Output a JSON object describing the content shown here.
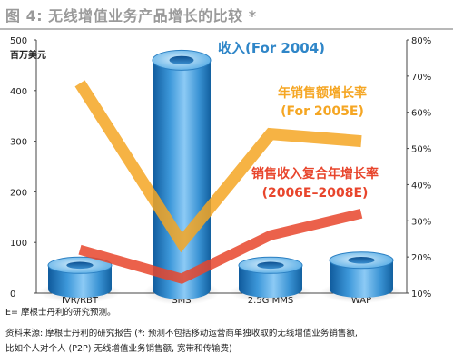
{
  "title": "图 4: 无线增值业务产品增长的比较 *",
  "chart_data": {
    "type": "bar",
    "categories": [
      "IVR/RBT",
      "SMS",
      "2.5G MMS",
      "WAP"
    ],
    "left_axis": {
      "unit": "百万美元",
      "min": 0,
      "max": 500,
      "ticks": [
        "0",
        "100",
        "200",
        "300",
        "400",
        "500"
      ]
    },
    "right_axis": {
      "min": 10,
      "max": 80,
      "ticks": [
        "10%",
        "20%",
        "30%",
        "40%",
        "50%",
        "60%",
        "70%",
        "80%"
      ]
    },
    "series": [
      {
        "name": "收入(For 2004)",
        "kind": "bar",
        "axis": "left",
        "values": [
          55,
          460,
          55,
          65
        ],
        "color": "#2f86c8"
      },
      {
        "name": "年销售额增长率",
        "name_line2": "(For 2005E)",
        "kind": "line",
        "axis": "right",
        "values": [
          68,
          24,
          54,
          52
        ],
        "color": "#f5a623"
      },
      {
        "name": "销售收入复合年增长率",
        "name_line2": "(2006E–2008E)",
        "kind": "line",
        "axis": "right",
        "values": [
          22,
          14,
          26,
          32
        ],
        "color": "#e8452c"
      }
    ],
    "grid": false,
    "legend": "inline-labels"
  },
  "notes": {
    "estimate": "E= 摩根士丹利的研究预测。",
    "source_line1": "资料来源: 摩根士丹利的研究报告 (*: 预测不包括移动运营商单独收取的无线增值业务销售额,",
    "source_line2": "比如个人对个人 (P2P) 无线增值业务销售额, 宽带和传输费)"
  }
}
